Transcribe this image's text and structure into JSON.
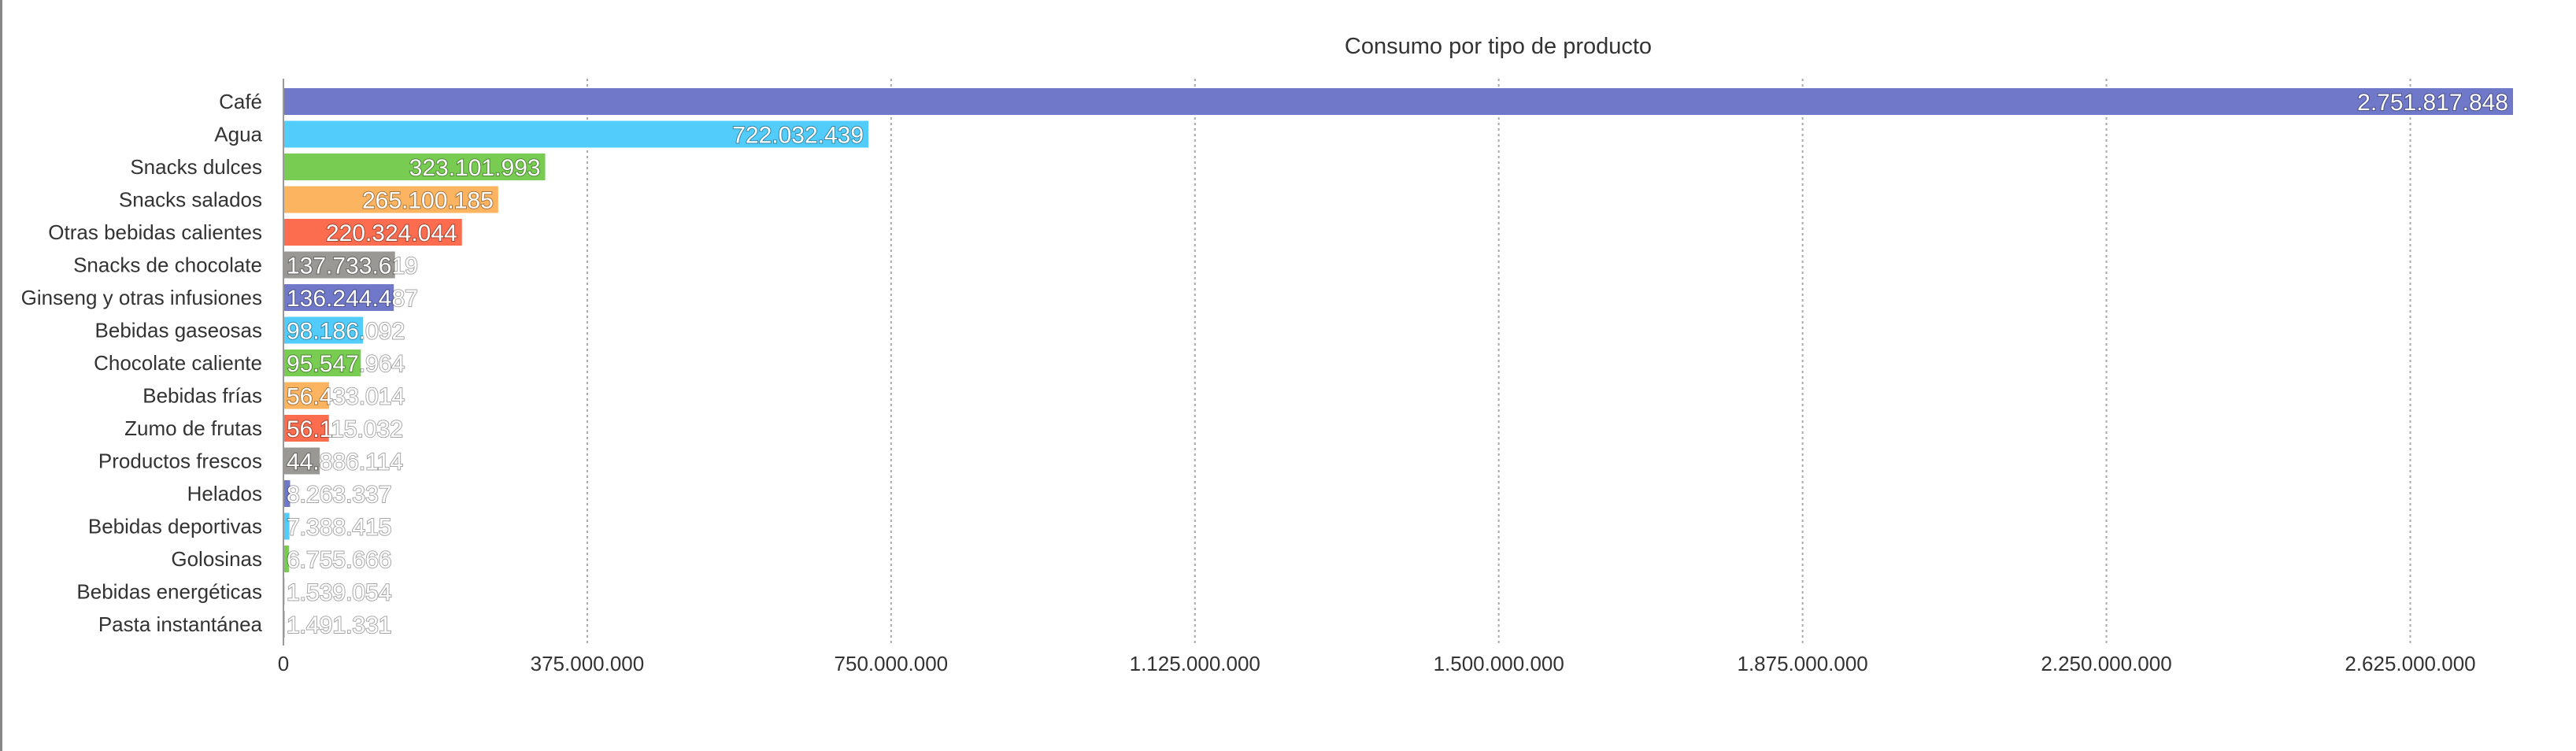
{
  "chart_data": {
    "type": "bar",
    "orientation": "horizontal",
    "title": "Consumo por tipo de producto",
    "xlabel": "",
    "ylabel": "",
    "categories": [
      "Café",
      "Agua",
      "Snacks dulces",
      "Snacks salados",
      "Otras bebidas calientes",
      "Snacks de chocolate",
      "Ginseng y otras infusiones",
      "Bebidas gaseosas",
      "Chocolate caliente",
      "Bebidas frías",
      "Zumo de frutas",
      "Productos frescos",
      "Helados",
      "Bebidas deportivas",
      "Golosinas",
      "Bebidas energéticas",
      "Pasta instantánea"
    ],
    "values": [
      2751817848,
      722032439,
      323101993,
      265100185,
      220324044,
      137733619,
      136244487,
      98186092,
      95547964,
      56433014,
      56115032,
      44886114,
      8263337,
      7388415,
      6755666,
      1539054,
      1491331
    ],
    "value_labels": [
      "2.751.817.848",
      "722.032.439",
      "323.101.993",
      "265.100.185",
      "220.324.044",
      "137.733.619",
      "136.244.487",
      "98.186.092",
      "95.547.964",
      "56.433.014",
      "56.115.032",
      "44.886.114",
      "8.263.337",
      "7.388.415",
      "6.755.666",
      "1.539.054",
      "1.491.331"
    ],
    "colors": [
      "#6f78c9",
      "#52cdfb",
      "#79cc52",
      "#fdb460",
      "#fc6c4f",
      "#9a9894"
    ],
    "xlim": [
      0,
      2751817848
    ],
    "x_ticks": [
      0,
      375000000,
      750000000,
      1125000000,
      1500000000,
      1875000000,
      2250000000,
      2625000000
    ],
    "x_tick_labels": [
      "0",
      "375.000.000",
      "750.000.000",
      "1.125.000.000",
      "1.500.000.000",
      "1.875.000.000",
      "2.250.000.000",
      "2.625.000.000"
    ],
    "grid": "vertical dotted",
    "legend": "none"
  }
}
